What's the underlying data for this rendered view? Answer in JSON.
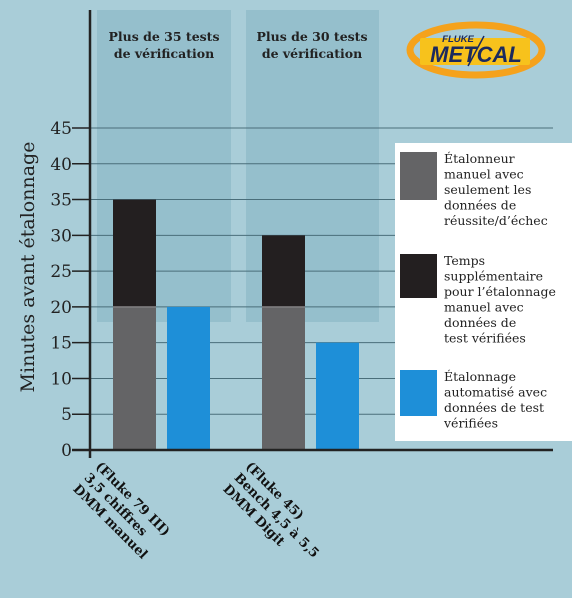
{
  "chart_data": {
    "type": "bar",
    "stacked": true,
    "ylabel": "Minutes avant étalonnage",
    "ylim": [
      0,
      45
    ],
    "yticks": [
      0,
      5,
      10,
      15,
      20,
      25,
      30,
      35,
      40,
      45
    ],
    "grid": true,
    "legend_position": "right",
    "groups": [
      {
        "header": [
          "Plus de 35 tests",
          "de vérification"
        ],
        "categories": [
          {
            "label": [
              "DMM manuel",
              "3,5 chiffres",
              "(Fluke 79 III)"
            ],
            "stack": [
              20,
              15,
              0
            ]
          },
          {
            "label": [],
            "stack": [
              0,
              0,
              20
            ]
          }
        ]
      },
      {
        "header": [
          "Plus de 30 tests",
          "de vérification"
        ],
        "categories": [
          {
            "label": [
              "DMM Digit",
              "Bench 4,5 à 5,5",
              "(Fluke 45)"
            ],
            "stack": [
              20,
              10,
              0
            ]
          },
          {
            "label": [],
            "stack": [
              0,
              0,
              15
            ]
          }
        ]
      }
    ],
    "series": [
      {
        "name": [
          "Étalonneur",
          "manuel avec",
          "seulement les",
          "données de",
          "réussite/d’échec"
        ],
        "color": "#646466"
      },
      {
        "name": [
          "Temps",
          "supplémentaire",
          "pour l’étalonnage",
          "manuel avec",
          "données de",
          "test vérifiées"
        ],
        "color": "#231f20"
      },
      {
        "name": [
          "Étalonnage",
          "automatisé avec",
          "données de test",
          "vérifiées"
        ],
        "color": "#1e8fd8"
      }
    ]
  },
  "logo": {
    "text_top": "FLUKE",
    "text_main": "METCAL"
  },
  "colors": {
    "background": "#a9cdd8",
    "panel": "#95bfcc",
    "gridline": "#4a6e7a",
    "axis": "#222222"
  }
}
